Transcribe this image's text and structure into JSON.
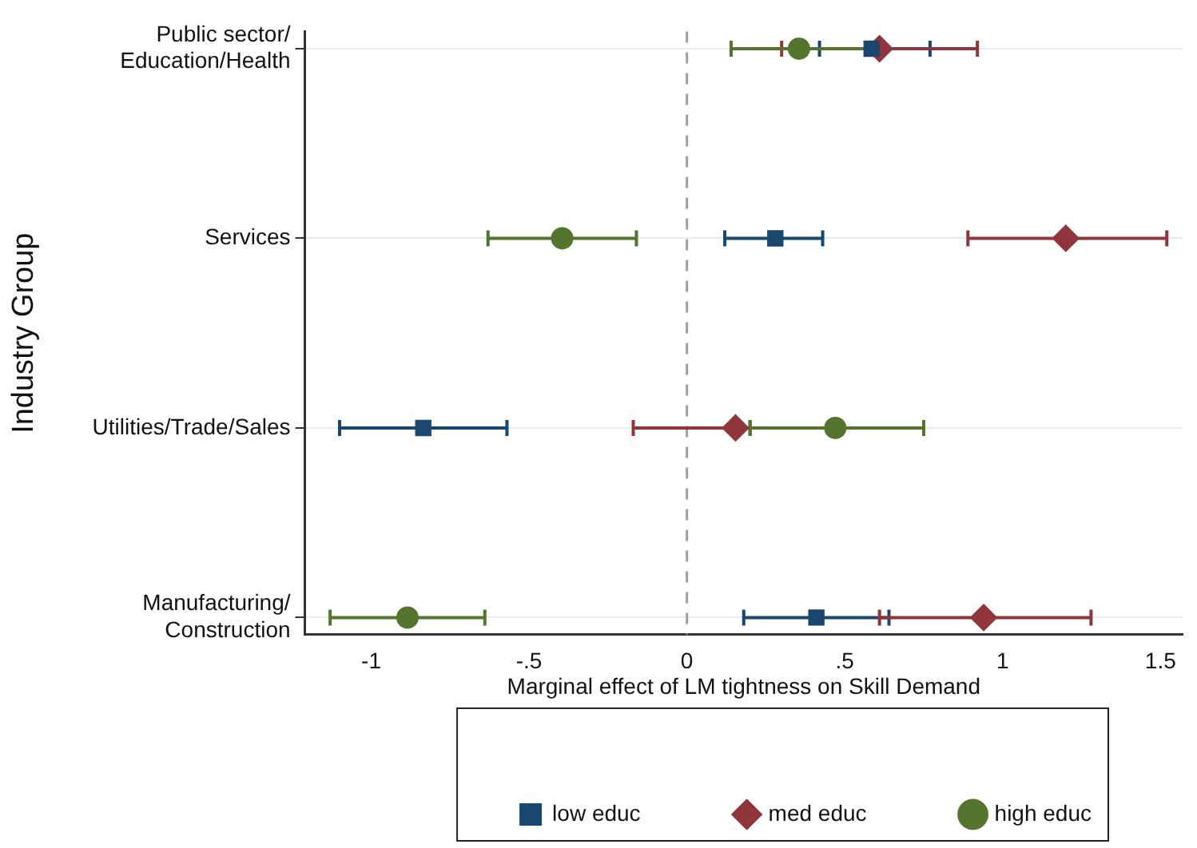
{
  "chart_data": {
    "type": "scatter",
    "orientation": "horizontal",
    "xlabel": "Marginal effect of LM tightness on Skill Demand",
    "ylabel": "Industry Group",
    "categories": [
      "Public sector/\nEducation/Health",
      "Services",
      "Utilities/Trade/Sales",
      "Manufacturing/\nConstruction"
    ],
    "series": [
      {
        "name": "low educ",
        "color": "#1a476f",
        "marker": "square",
        "values": [
          0.585,
          0.28,
          -0.835,
          0.41
        ],
        "errors": [
          [
            0.42,
            0.77
          ],
          [
            0.12,
            0.43
          ],
          [
            -1.1,
            -0.57
          ],
          [
            0.18,
            0.64
          ]
        ]
      },
      {
        "name": "med educ",
        "color": "#90353b",
        "marker": "diamond",
        "values": [
          0.61,
          1.2,
          0.154,
          0.94
        ],
        "errors": [
          [
            0.3,
            0.92
          ],
          [
            0.89,
            1.52
          ],
          [
            -0.17,
            0.2
          ],
          [
            0.61,
            1.28
          ]
        ]
      },
      {
        "name": "high educ",
        "color": "#55752f",
        "marker": "circle",
        "values": [
          0.355,
          -0.395,
          0.47,
          -0.885
        ],
        "errors": [
          [
            0.14,
            0.57
          ],
          [
            -0.63,
            -0.16
          ],
          [
            0.2,
            0.75
          ],
          [
            -1.13,
            -0.64
          ]
        ]
      }
    ],
    "xlim": [
      -1.21,
      1.57
    ],
    "xticks": [
      -1,
      {
        "value": -0.5,
        "label": "-.5"
      },
      0,
      {
        "value": 0.5,
        "label": ".5"
      },
      1,
      1.5
    ],
    "ref_lines": [
      {
        "axis": "x",
        "value": 0,
        "color": "#a0a0a0",
        "line_style": "dashed"
      }
    ],
    "grid": "y",
    "legend": "bottom"
  }
}
